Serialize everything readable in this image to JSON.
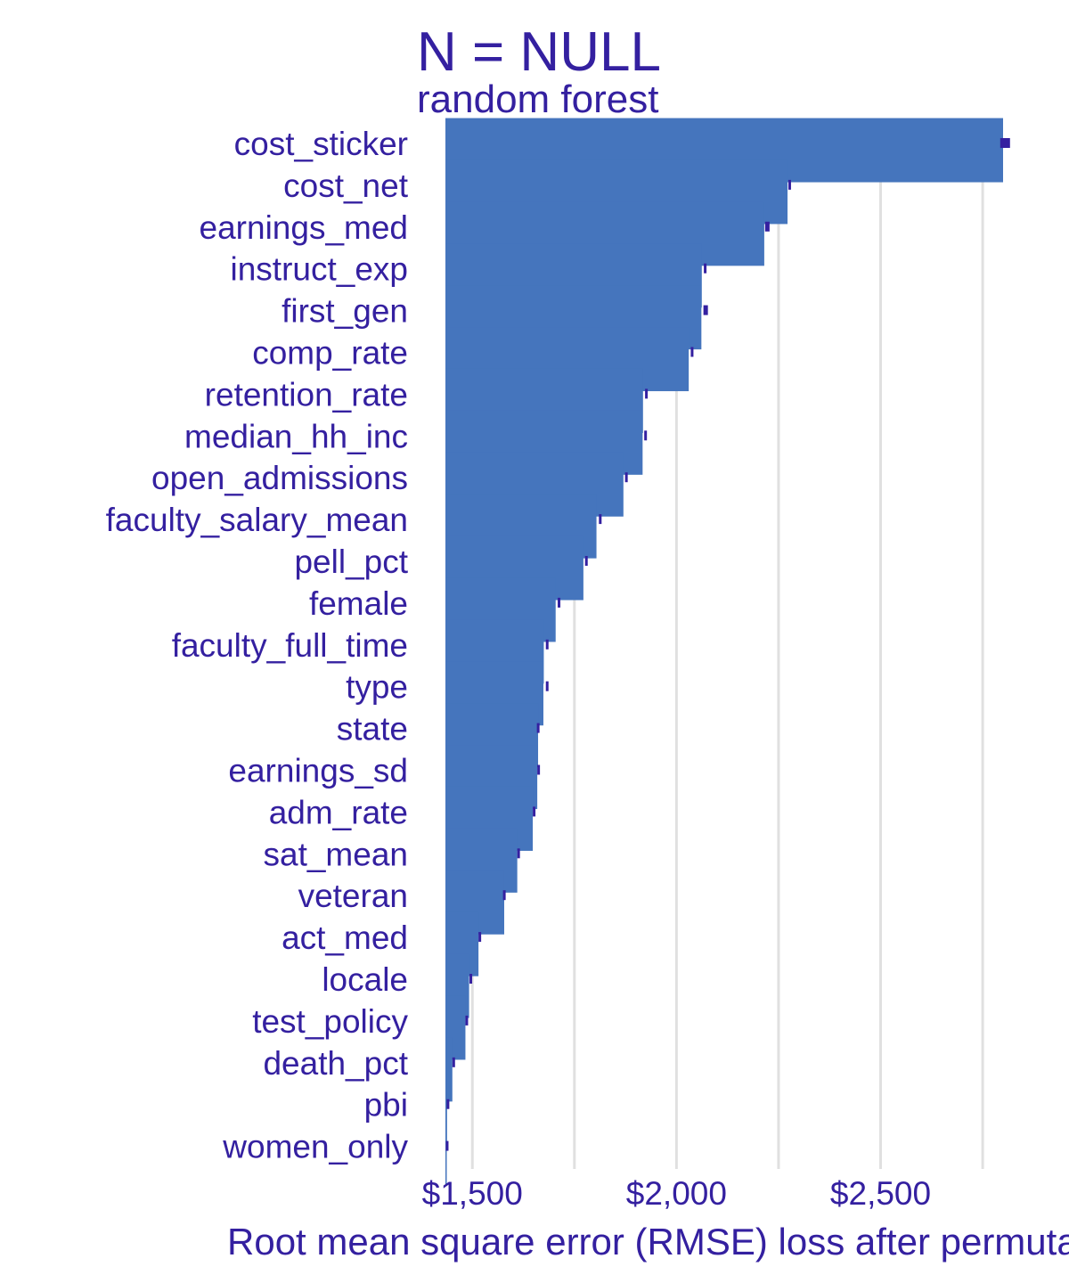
{
  "colors": {
    "text": "#3420a0",
    "bar": "#4575bd",
    "marker": "#3420a0",
    "grid": "#e0e0e0"
  },
  "chart_data": {
    "type": "bar",
    "orientation": "horizontal",
    "title": "N = NULL",
    "subtitle": "random forest",
    "xlabel": "Root mean square error (RMSE) loss after permutations",
    "ylabel": "",
    "baseline": 1434,
    "xlim": [
      1434,
      2800
    ],
    "xticks": [
      1500,
      2000,
      2500
    ],
    "xtick_labels": [
      "$1,500",
      "$2,000",
      "$2,500"
    ],
    "grid": true,
    "categories": [
      "cost_sticker",
      "cost_net",
      "earnings_med",
      "instruct_exp",
      "first_gen",
      "comp_rate",
      "retention_rate",
      "median_hh_inc",
      "open_admissions",
      "faculty_salary_mean",
      "pell_pct",
      "female",
      "faculty_full_time",
      "type",
      "state",
      "earnings_sd",
      "adm_rate",
      "sat_mean",
      "veteran",
      "act_med",
      "locale",
      "test_policy",
      "death_pct",
      "pbi",
      "women_only"
    ],
    "values": [
      2800,
      2272,
      2215,
      2062,
      2061,
      2030,
      1918,
      1917,
      1870,
      1804,
      1772,
      1704,
      1675,
      1674,
      1661,
      1659,
      1648,
      1610,
      1578,
      1515,
      1492,
      1483,
      1451,
      1438,
      1436
    ],
    "markers": [
      {
        "low": 2793,
        "high": 2817
      },
      {
        "low": 2274,
        "high": 2279
      },
      {
        "low": 2217,
        "high": 2228
      },
      {
        "low": 2067,
        "high": 2071
      },
      {
        "low": 2066,
        "high": 2077
      },
      {
        "low": 2035,
        "high": 2040
      },
      {
        "low": 1923,
        "high": 1928
      },
      {
        "low": 1921,
        "high": 1923
      },
      {
        "low": 1874,
        "high": 1880
      },
      {
        "low": 1810,
        "high": 1813
      },
      {
        "low": 1776,
        "high": 1778
      },
      {
        "low": 1709,
        "high": 1714
      },
      {
        "low": 1680,
        "high": 1686
      },
      {
        "low": 1680,
        "high": 1686
      },
      {
        "low": 1658,
        "high": 1661
      },
      {
        "low": 1659,
        "high": 1662
      },
      {
        "low": 1648,
        "high": 1651
      },
      {
        "low": 1610,
        "high": 1613
      },
      {
        "low": 1575,
        "high": 1581
      },
      {
        "low": 1515,
        "high": 1518
      },
      {
        "low": 1493,
        "high": 1495
      },
      {
        "low": 1483,
        "high": 1485
      },
      {
        "low": 1451,
        "high": 1452
      },
      {
        "low": 1437,
        "high": 1438
      },
      {
        "low": 1435,
        "high": 1436
      }
    ]
  }
}
